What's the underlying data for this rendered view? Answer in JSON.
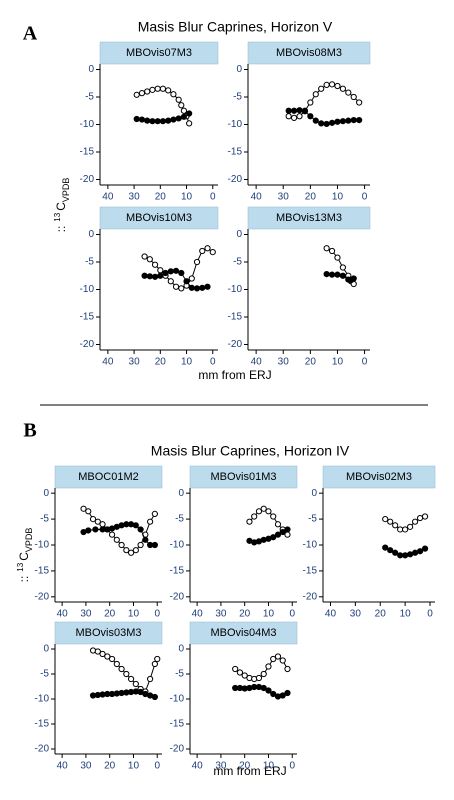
{
  "figures": [
    {
      "label": "A",
      "title": "Masis Blur Caprines, Horizon V",
      "x_label": "mm from ERJ",
      "y_label": [
        "::",
        "13",
        "C",
        "VPDB"
      ],
      "panels": [
        0,
        1,
        2,
        3
      ]
    },
    {
      "label": "B",
      "title": "Masis Blur Caprines, Horizon IV",
      "x_label": "mm from ERJ",
      "y_label": [
        "::",
        "13",
        "C",
        "VPDB"
      ],
      "panels": [
        4,
        5,
        6,
        7,
        8
      ]
    }
  ],
  "chart_data": [
    {
      "type": "scatter",
      "title": "MBOvis07M3",
      "xlim": [
        43,
        -2
      ],
      "ylim": [
        -21,
        1
      ],
      "xticks": [
        40,
        30,
        20,
        10,
        0
      ],
      "yticks": [
        0,
        -5,
        -10,
        -15,
        -20
      ],
      "series": [
        {
          "marker": "open",
          "color": "#000000",
          "x": [
            29,
            27,
            25,
            23,
            21,
            19,
            17,
            15,
            13,
            12,
            11,
            10,
            9
          ],
          "values": [
            -4.6,
            -4.3,
            -4.0,
            -3.7,
            -3.5,
            -3.5,
            -3.8,
            -4.5,
            -5.5,
            -6.5,
            -7.5,
            -8.5,
            -9.8
          ]
        },
        {
          "marker": "filled",
          "color": "#000000",
          "x": [
            29,
            27,
            25,
            23,
            21,
            19,
            17,
            15,
            13,
            11,
            9
          ],
          "values": [
            -9.0,
            -9.1,
            -9.3,
            -9.4,
            -9.4,
            -9.4,
            -9.3,
            -9.1,
            -8.9,
            -8.6,
            -8.0
          ]
        }
      ]
    },
    {
      "type": "scatter",
      "title": "MBOvis08M3",
      "xlim": [
        43,
        -2
      ],
      "ylim": [
        -21,
        1
      ],
      "xticks": [
        40,
        30,
        20,
        10,
        0
      ],
      "yticks": [
        0,
        -5,
        -10,
        -15,
        -20
      ],
      "series": [
        {
          "marker": "open",
          "color": "#000000",
          "x": [
            28,
            26,
            24,
            22,
            20,
            18,
            16,
            14,
            12,
            10,
            8,
            6,
            4,
            2
          ],
          "values": [
            -8.5,
            -8.8,
            -8.5,
            -7.5,
            -6,
            -4.5,
            -3.5,
            -2.8,
            -2.7,
            -3,
            -3.5,
            -4.2,
            -5,
            -6
          ]
        },
        {
          "marker": "filled",
          "color": "#000000",
          "x": [
            28,
            26,
            24,
            22,
            20,
            18,
            16,
            14,
            12,
            10,
            8,
            6,
            4,
            2
          ],
          "values": [
            -7.5,
            -7.5,
            -7.4,
            -7.6,
            -8.5,
            -9.3,
            -9.8,
            -9.9,
            -9.7,
            -9.5,
            -9.4,
            -9.3,
            -9.2,
            -9.2
          ]
        }
      ]
    },
    {
      "type": "scatter",
      "title": "MBOvis10M3",
      "xlim": [
        43,
        -2
      ],
      "ylim": [
        -21,
        1
      ],
      "xticks": [
        40,
        30,
        20,
        10,
        0
      ],
      "yticks": [
        0,
        -5,
        -10,
        -15,
        -20
      ],
      "series": [
        {
          "marker": "open",
          "color": "#000000",
          "x": [
            26,
            24,
            22,
            20,
            18,
            16,
            14,
            12,
            10,
            8,
            6,
            4,
            2,
            0
          ],
          "values": [
            -4,
            -4.5,
            -5.5,
            -6.5,
            -7.5,
            -8.5,
            -9.5,
            -9.8,
            -9.3,
            -8,
            -5,
            -3,
            -2.5,
            -3.2
          ]
        },
        {
          "marker": "filled",
          "color": "#000000",
          "x": [
            26,
            24,
            22,
            20,
            18,
            16,
            14,
            12,
            10,
            8,
            6,
            4,
            2
          ],
          "values": [
            -7.5,
            -7.6,
            -7.7,
            -7.5,
            -7,
            -6.7,
            -6.6,
            -7,
            -8.5,
            -9.7,
            -9.8,
            -9.7,
            -9.5
          ]
        }
      ]
    },
    {
      "type": "scatter",
      "title": "MBOvis13M3",
      "xlim": [
        43,
        -2
      ],
      "ylim": [
        -21,
        1
      ],
      "xticks": [
        40,
        30,
        20,
        10,
        0
      ],
      "yticks": [
        0,
        -5,
        -10,
        -15,
        -20
      ],
      "series": [
        {
          "marker": "open",
          "color": "#000000",
          "x": [
            14,
            12,
            10,
            8,
            6,
            5,
            4
          ],
          "values": [
            -2.5,
            -3,
            -4.2,
            -6,
            -7.5,
            -8.5,
            -9
          ]
        },
        {
          "marker": "filled",
          "color": "#000000",
          "x": [
            14,
            12,
            10,
            8,
            6,
            5,
            4
          ],
          "values": [
            -7.2,
            -7.3,
            -7.3,
            -7.5,
            -8.2,
            -8.3,
            -8
          ]
        }
      ]
    },
    {
      "type": "scatter",
      "title": "MBOC01M2",
      "xlim": [
        43,
        -2
      ],
      "ylim": [
        -21,
        1
      ],
      "xticks": [
        40,
        30,
        20,
        10,
        0
      ],
      "yticks": [
        0,
        -5,
        -10,
        -15,
        -20
      ],
      "series": [
        {
          "marker": "open",
          "color": "#000000",
          "x": [
            31,
            29,
            27,
            25,
            23,
            21,
            19,
            17,
            15,
            13,
            11,
            9,
            7,
            5,
            3,
            1
          ],
          "values": [
            -3,
            -3.5,
            -5,
            -5.5,
            -6,
            -7,
            -8,
            -9,
            -10,
            -11,
            -11.5,
            -11,
            -10,
            -8,
            -5.5,
            -4
          ]
        },
        {
          "marker": "filled",
          "color": "#000000",
          "x": [
            31,
            29,
            26,
            23,
            21,
            19,
            17,
            15,
            13,
            11,
            9,
            7,
            5,
            3,
            1
          ],
          "values": [
            -7.5,
            -7.2,
            -7,
            -7,
            -7,
            -6.8,
            -6.5,
            -6.2,
            -6,
            -6,
            -6.2,
            -7,
            -9,
            -10,
            -10
          ]
        }
      ]
    },
    {
      "type": "scatter",
      "title": "MBOvis01M3",
      "xlim": [
        43,
        -2
      ],
      "ylim": [
        -21,
        1
      ],
      "xticks": [
        40,
        30,
        20,
        10,
        0
      ],
      "yticks": [
        0,
        -5,
        -10,
        -15,
        -20
      ],
      "series": [
        {
          "marker": "open",
          "color": "#000000",
          "x": [
            18,
            16,
            14,
            12,
            10,
            8,
            6,
            4,
            2
          ],
          "values": [
            -5.5,
            -4.5,
            -3.5,
            -3,
            -3.5,
            -4.5,
            -6,
            -7,
            -8
          ]
        },
        {
          "marker": "filled",
          "color": "#000000",
          "x": [
            18,
            16,
            14,
            12,
            10,
            8,
            6,
            4,
            2
          ],
          "values": [
            -9.2,
            -9.5,
            -9.3,
            -9,
            -8.8,
            -8.5,
            -8,
            -7.5,
            -7
          ]
        }
      ]
    },
    {
      "type": "scatter",
      "title": "MBOvis02M3",
      "xlim": [
        43,
        -2
      ],
      "ylim": [
        -21,
        1
      ],
      "xticks": [
        40,
        30,
        20,
        10,
        0
      ],
      "yticks": [
        0,
        -5,
        -10,
        -15,
        -20
      ],
      "series": [
        {
          "marker": "open",
          "color": "#000000",
          "x": [
            18,
            16,
            14,
            12,
            10,
            8,
            6,
            4,
            2
          ],
          "values": [
            -5,
            -5.5,
            -6.2,
            -7,
            -7,
            -6.5,
            -5.5,
            -4.8,
            -4.5
          ]
        },
        {
          "marker": "filled",
          "color": "#000000",
          "x": [
            18,
            16,
            14,
            12,
            10,
            8,
            6,
            4,
            2
          ],
          "values": [
            -10.5,
            -11,
            -11.5,
            -12,
            -12,
            -11.8,
            -11.5,
            -11.2,
            -10.7
          ]
        }
      ]
    },
    {
      "type": "scatter",
      "title": "MBOvis03M3",
      "xlim": [
        43,
        -2
      ],
      "ylim": [
        -21,
        1
      ],
      "xticks": [
        40,
        30,
        20,
        10,
        0
      ],
      "yticks": [
        0,
        -5,
        -10,
        -15,
        -20
      ],
      "series": [
        {
          "marker": "open",
          "color": "#000000",
          "x": [
            27,
            25,
            23,
            21,
            19,
            17,
            15,
            13,
            11,
            9,
            7,
            5,
            3,
            1,
            0
          ],
          "values": [
            -0.3,
            -0.5,
            -1,
            -1.5,
            -2,
            -3,
            -4,
            -5,
            -6,
            -7,
            -8,
            -8.5,
            -6,
            -3,
            -2
          ]
        },
        {
          "marker": "filled",
          "color": "#000000",
          "x": [
            27,
            25,
            23,
            21,
            19,
            17,
            15,
            13,
            11,
            9,
            7,
            5,
            3,
            1
          ],
          "values": [
            -9.3,
            -9.2,
            -9.1,
            -9,
            -9,
            -8.9,
            -8.8,
            -8.7,
            -8.6,
            -8.5,
            -8.6,
            -9,
            -9.3,
            -9.6
          ]
        }
      ]
    },
    {
      "type": "scatter",
      "title": "MBOvis04M3",
      "xlim": [
        43,
        -2
      ],
      "ylim": [
        -21,
        1
      ],
      "xticks": [
        40,
        30,
        20,
        10,
        0
      ],
      "yticks": [
        0,
        -5,
        -10,
        -15,
        -20
      ],
      "series": [
        {
          "marker": "open",
          "color": "#000000",
          "x": [
            24,
            22,
            20,
            18,
            16,
            14,
            12,
            10,
            8,
            6,
            4,
            2
          ],
          "values": [
            -4,
            -4.7,
            -5.3,
            -5.8,
            -6,
            -5.8,
            -5,
            -3.5,
            -2,
            -1.5,
            -2.3,
            -4
          ]
        },
        {
          "marker": "filled",
          "color": "#000000",
          "x": [
            24,
            22,
            20,
            18,
            16,
            14,
            12,
            10,
            8,
            6,
            4,
            2
          ],
          "values": [
            -7.8,
            -7.8,
            -7.9,
            -7.8,
            -7.6,
            -7.6,
            -7.8,
            -8.3,
            -9,
            -9.5,
            -9.3,
            -8.8
          ]
        }
      ]
    }
  ]
}
